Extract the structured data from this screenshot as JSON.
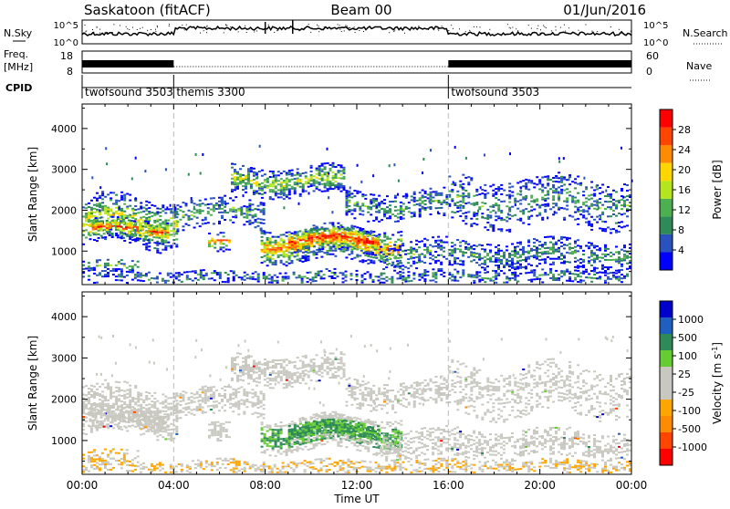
{
  "header": {
    "site": "Saskatoon (fitACF)",
    "beam": "Beam 00",
    "date": "01/Jun/2016"
  },
  "summary": {
    "nsky_label": "N.Sky",
    "nsky_ticks": [
      "10^5",
      "10^0"
    ],
    "nsearch_label": "N.Search",
    "nsearch_ticks": [
      "10^5",
      "10^0"
    ],
    "freq_label_1": "Freq.",
    "freq_label_2": "[MHz]",
    "freq_ticks": [
      "18",
      "8"
    ],
    "nave_label": "Nave",
    "nave_ticks": [
      "60",
      "0"
    ],
    "cpid_label": "CPID",
    "cpid_segments": [
      {
        "name": "twofsound 3503",
        "start": 0,
        "end": 4
      },
      {
        "name": "themis 3300",
        "start": 4,
        "end": 16
      },
      {
        "name": "twofsound 3503",
        "start": 16,
        "end": 24
      }
    ]
  },
  "colors": {
    "power": [
      "#0000ff",
      "#2a52be",
      "#2e8b57",
      "#4caf50",
      "#b5e61d",
      "#ffd700",
      "#ff8c00",
      "#ff4500",
      "#ff0000"
    ],
    "velocity": [
      "#ff0000",
      "#ff4500",
      "#ff8c00",
      "#ffa500",
      "#c8c8c0",
      "#c8c8c0",
      "#66cc33",
      "#2e8b57",
      "#1f5fbf",
      "#0000cc"
    ]
  },
  "chart_data": [
    {
      "type": "heatmap",
      "name": "power",
      "ylabel": "Slant Range [km]",
      "ylim": [
        180,
        4600
      ],
      "yticks": [
        1000,
        2000,
        3000,
        4000
      ],
      "xlim": [
        0,
        24
      ],
      "colorbar_label": "Power [dB]",
      "colorbar_ticks": [
        "4",
        "8",
        "12",
        "16",
        "20",
        "24",
        "28"
      ],
      "colorbar_range": [
        0,
        32
      ]
    },
    {
      "type": "heatmap",
      "name": "velocity",
      "ylabel": "Slant Range [km]",
      "ylim": [
        180,
        4600
      ],
      "yticks": [
        1000,
        2000,
        3000,
        4000
      ],
      "xlim": [
        0,
        24
      ],
      "colorbar_label": "Velocity [m s",
      "colorbar_label_sup": "-1",
      "colorbar_label_end": "]",
      "colorbar_ticks": [
        "-1000",
        "-500",
        "-100",
        "-25",
        "25",
        "100",
        "500",
        "1000"
      ]
    }
  ],
  "xaxis": {
    "label": "Time UT",
    "ticks": [
      "00:00",
      "04:00",
      "08:00",
      "12:00",
      "16:00",
      "20:00",
      "00:00"
    ]
  }
}
